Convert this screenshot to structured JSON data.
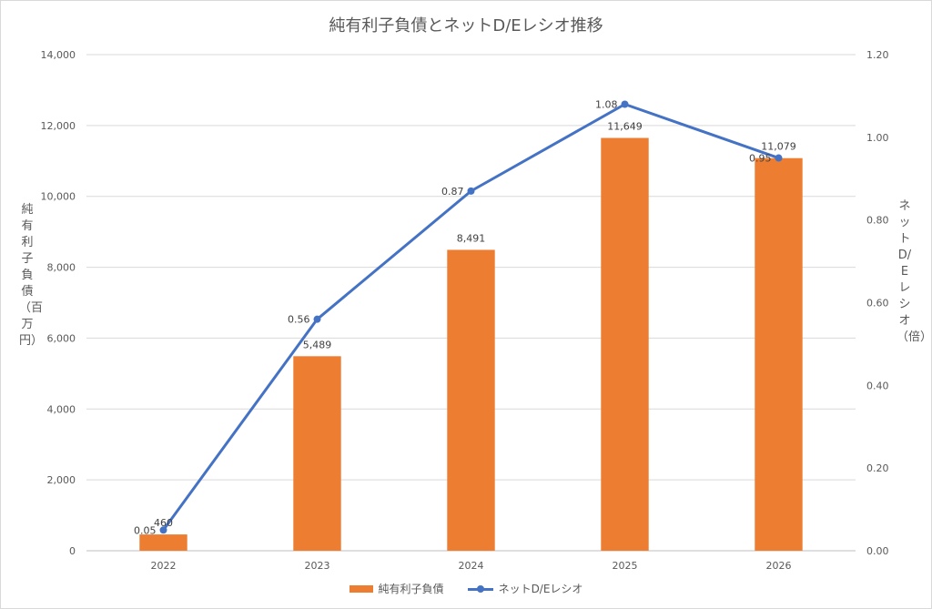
{
  "chart_data": {
    "type": "bar",
    "title": "純有利子負債とネットD/Eレシオ推移",
    "categories": [
      "2022",
      "2023",
      "2024",
      "2025",
      "2026"
    ],
    "series": [
      {
        "name": "純有利子負債",
        "type": "bar",
        "axis": "left",
        "values": [
          460,
          5489,
          8491,
          11649,
          11079
        ],
        "labels": [
          "460",
          "5,489",
          "8,491",
          "11,649",
          "11,079"
        ],
        "color": "#ed7d31"
      },
      {
        "name": "ネットD/Eレシオ",
        "type": "line",
        "axis": "right",
        "values": [
          0.05,
          0.56,
          0.87,
          1.08,
          0.95
        ],
        "labels": [
          "0.05",
          "0.56",
          "0.87",
          "1.08",
          "0.95"
        ],
        "color": "#4472c4"
      }
    ],
    "ylabel": "純有利子負債（百万円）",
    "y2label": "ネットD/Eレシオ（倍）",
    "ylim": [
      0,
      14000
    ],
    "y2lim": [
      0,
      1.2
    ],
    "yticks": [
      "0",
      "2,000",
      "4,000",
      "6,000",
      "8,000",
      "10,000",
      "12,000",
      "14,000"
    ],
    "y2ticks": [
      "0.00",
      "0.20",
      "0.40",
      "0.60",
      "0.80",
      "1.00",
      "1.20"
    ],
    "grid": true,
    "legend_position": "bottom"
  }
}
